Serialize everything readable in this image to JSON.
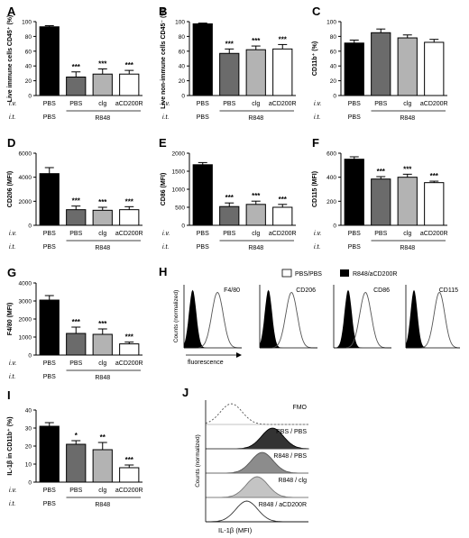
{
  "colors": {
    "pbs_pbs": "#000000",
    "r848_pbs": "#6b6b6b",
    "r848_clg": "#b3b3b3",
    "r848_acd200r": "#ffffff",
    "hist_fill_dark": "#000000",
    "hist_open_line": "#555555"
  },
  "panel_labels": {
    "A": "A",
    "B": "B",
    "C": "C",
    "D": "D",
    "E": "E",
    "F": "F",
    "G": "G",
    "H": "H",
    "I": "I",
    "J": "J"
  },
  "axis_groups": {
    "iv_label": "i.v.",
    "it_label": "i.t.",
    "iv_values": [
      "PBS",
      "PBS",
      "clg",
      "aCD200R"
    ],
    "it_pbs": "PBS",
    "it_r848": "R848"
  },
  "chart_data": [
    {
      "panel": "A",
      "type": "bar",
      "categories": [
        "PBS",
        "PBS",
        "clg",
        "aCD200R"
      ],
      "values": [
        93,
        25,
        29,
        29
      ],
      "errors": [
        1.5,
        7,
        7,
        5
      ],
      "significance": [
        "",
        "***",
        "***",
        "***"
      ],
      "ylabel": "Live immune cells CD45⁺ (%)",
      "ylim": [
        0,
        100
      ],
      "yticks": [
        0,
        20,
        40,
        60,
        80,
        100
      ]
    },
    {
      "panel": "B",
      "type": "bar",
      "categories": [
        "PBS",
        "PBS",
        "clg",
        "aCD200R"
      ],
      "values": [
        97,
        57,
        62,
        63
      ],
      "errors": [
        1,
        6,
        5,
        6
      ],
      "significance": [
        "",
        "***",
        "***",
        "***"
      ],
      "ylabel": "Live non-immune cells CD45⁻ (%)",
      "ylim": [
        0,
        100
      ],
      "yticks": [
        0,
        20,
        40,
        60,
        80,
        100
      ]
    },
    {
      "panel": "C",
      "type": "bar",
      "categories": [
        "PBS",
        "PBS",
        "clg",
        "aCD200R"
      ],
      "values": [
        71,
        85,
        78,
        72
      ],
      "errors": [
        4,
        5,
        4,
        4
      ],
      "significance": [
        "",
        "",
        "",
        ""
      ],
      "ylabel": "CD11b⁺ (%)",
      "ylim": [
        0,
        100
      ],
      "yticks": [
        0,
        20,
        40,
        60,
        80,
        100
      ]
    },
    {
      "panel": "D",
      "type": "bar",
      "categories": [
        "PBS",
        "PBS",
        "clg",
        "aCD200R"
      ],
      "values": [
        4300,
        1300,
        1250,
        1300
      ],
      "errors": [
        500,
        300,
        250,
        250
      ],
      "significance": [
        "",
        "***",
        "***",
        "***"
      ],
      "ylabel": "CD206 (MFI)",
      "ylim": [
        0,
        6000
      ],
      "yticks": [
        0,
        2000,
        4000,
        6000
      ]
    },
    {
      "panel": "E",
      "type": "bar",
      "categories": [
        "PBS",
        "PBS",
        "clg",
        "aCD200R"
      ],
      "values": [
        1680,
        520,
        580,
        500
      ],
      "errors": [
        60,
        100,
        90,
        80
      ],
      "significance": [
        "",
        "***",
        "***",
        "***"
      ],
      "ylabel": "CD86 (MFI)",
      "ylim": [
        0,
        2000
      ],
      "yticks": [
        0,
        500,
        1000,
        1500,
        2000
      ]
    },
    {
      "panel": "F",
      "type": "bar",
      "categories": [
        "PBS",
        "PBS",
        "clg",
        "aCD200R"
      ],
      "values": [
        550,
        385,
        400,
        355
      ],
      "errors": [
        20,
        20,
        25,
        12
      ],
      "significance": [
        "",
        "***",
        "***",
        "***"
      ],
      "ylabel": "CD115 (MFI)",
      "ylim": [
        0,
        600
      ],
      "yticks": [
        0,
        200,
        400,
        600
      ]
    },
    {
      "panel": "G",
      "type": "bar",
      "categories": [
        "PBS",
        "PBS",
        "clg",
        "aCD200R"
      ],
      "values": [
        3050,
        1200,
        1150,
        620
      ],
      "errors": [
        250,
        350,
        300,
        100
      ],
      "significance": [
        "",
        "***",
        "***",
        "***"
      ],
      "ylabel": "F4/80 (MFI)",
      "ylim": [
        0,
        4000
      ],
      "yticks": [
        0,
        1000,
        2000,
        3000,
        4000
      ]
    },
    {
      "panel": "I",
      "type": "bar",
      "categories": [
        "PBS",
        "PBS",
        "clg",
        "aCD200R"
      ],
      "values": [
        31,
        21,
        18,
        8
      ],
      "errors": [
        2,
        2,
        4,
        1.5
      ],
      "significance": [
        "",
        "*",
        "**",
        "***"
      ],
      "ylabel": "IL-1β in CD11b⁺ (%)",
      "ylim": [
        0,
        40
      ],
      "yticks": [
        0,
        10,
        20,
        30,
        40
      ]
    }
  ],
  "panel_H": {
    "legend": [
      "PBS/PBS",
      "R848/aCD200R"
    ],
    "ylabel": "Counts (normalized)",
    "xlabel": "fluorescence",
    "histograms": [
      {
        "label": "F4/80",
        "dark_peak": 0.15,
        "open_peak": 0.58
      },
      {
        "label": "CD206",
        "dark_peak": 0.15,
        "open_peak": 0.55
      },
      {
        "label": "CD86",
        "dark_peak": 0.25,
        "open_peak": 0.55
      },
      {
        "label": "CD115",
        "dark_peak": 0.15,
        "open_peak": 0.62
      }
    ]
  },
  "panel_J": {
    "ylabel": "Counts (normalized)",
    "xlabel": "IL-1β (MFI)",
    "tracks": [
      {
        "label": "FMO",
        "style": "dashed",
        "peak": 0.25
      },
      {
        "label": "PBS / PBS",
        "style": "dark",
        "peak": 0.65
      },
      {
        "label": "R848 / PBS",
        "style": "mid",
        "peak": 0.55
      },
      {
        "label": "R848 / clg",
        "style": "light",
        "peak": 0.5
      },
      {
        "label": "R848 / aCD200R",
        "style": "open",
        "peak": 0.4
      }
    ]
  }
}
